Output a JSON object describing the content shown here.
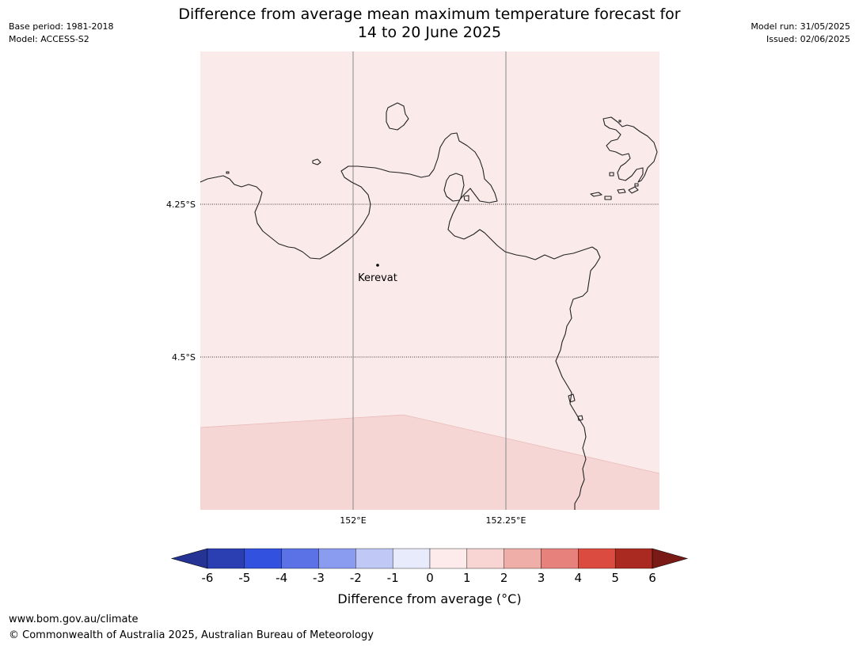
{
  "title_line1": "Difference from average mean maximum temperature forecast for",
  "title_line2": "14 to 20 June 2025",
  "base_period": "Base period: 1981-2018",
  "model": "Model: ACCESS-S2",
  "model_run": "Model run: 31/05/2025",
  "issued": "Issued: 02/06/2025",
  "map": {
    "lat_labels": [
      "4.25°S",
      "4.5°S"
    ],
    "lon_labels": [
      "152°E",
      "152.25°E"
    ],
    "place": "Kerevat",
    "colors": {
      "background_0_to_1": "#fbeaea",
      "band_1_to_2": "#f6d6d4",
      "coast": "#222222",
      "grid": "#888888"
    }
  },
  "colorbar": {
    "label": "Difference from average (°C)",
    "ticks": [
      "-6",
      "-5",
      "-4",
      "-3",
      "-2",
      "-1",
      "0",
      "1",
      "2",
      "3",
      "4",
      "5",
      "6"
    ],
    "colors": [
      "#253494",
      "#2b3fb2",
      "#3251de",
      "#5b72e6",
      "#8a9cef",
      "#c0c8f6",
      "#e8ebfc",
      "#fcebea",
      "#f8d4d2",
      "#f0aea9",
      "#e7817b",
      "#dc4b40",
      "#aa2a22",
      "#7a1a17"
    ]
  },
  "footer_url": "www.bom.gov.au/climate",
  "footer_copyright": "© Commonwealth of Australia 2025, Australian Bureau of Meteorology"
}
